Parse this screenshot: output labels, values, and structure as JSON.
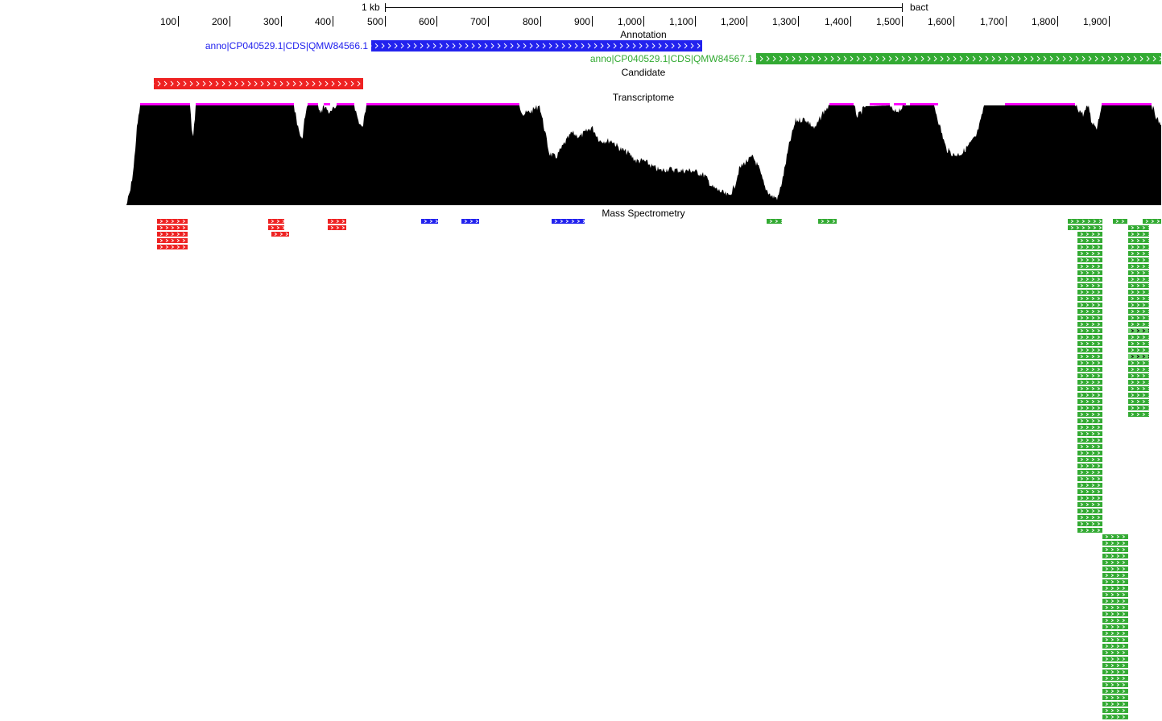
{
  "ruler": {
    "scale_label": "1 kb",
    "ref_label": "bact",
    "ticks": [
      "100",
      "200",
      "300",
      "400",
      "500",
      "600",
      "700",
      "800",
      "900",
      "1,000",
      "1,100",
      "1,200",
      "1,300",
      "1,400",
      "1,500",
      "1,600",
      "1,700",
      "1,800",
      "1,900"
    ]
  },
  "tracks": {
    "annotation": {
      "title": "Annotation",
      "features": [
        {
          "label": "anno|CP040529.1|CDS|QMW84566.1",
          "color": "#2222ee"
        },
        {
          "label": "anno|CP040529.1|CDS|QMW84567.1",
          "color": "#33aa33"
        }
      ]
    },
    "candidate": {
      "title": "Candidate",
      "color": "#ee2222"
    },
    "transcriptome": {
      "title": "Transcriptome",
      "coverage_color": "#000000",
      "saturation_color": "#ff00ff"
    },
    "mass_spectrometry": {
      "title": "Mass Spectrometry"
    }
  },
  "colors": {
    "red": "#ee2222",
    "blue": "#2222ee",
    "green": "#33aa33",
    "light_green": "#66cc66"
  }
}
